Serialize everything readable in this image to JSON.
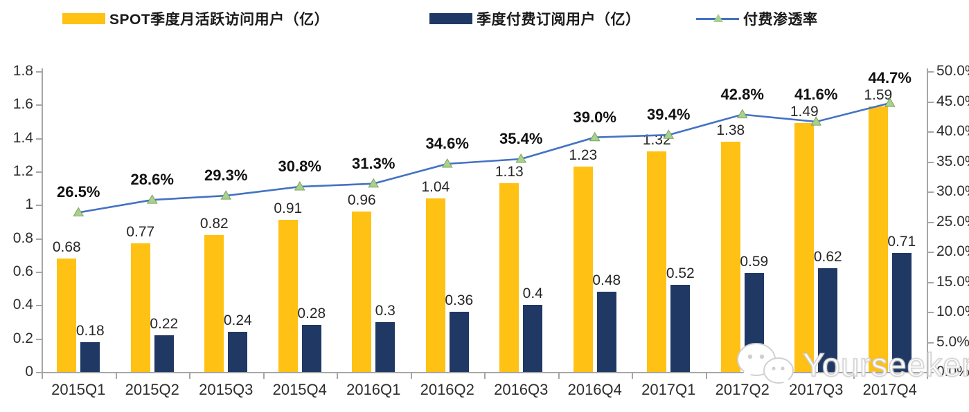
{
  "legend": {
    "items": [
      {
        "label": "SPOT季度月活跃访问用户（亿）",
        "swatch_color": "#FFC113",
        "marker": "bar"
      },
      {
        "label": "季度付费订阅用户（亿）",
        "swatch_color": "#1F3864",
        "marker": "bar"
      },
      {
        "label": "付费渗透率",
        "swatch_color": "#4472C4",
        "marker": "line-with-triangle"
      }
    ]
  },
  "watermark": {
    "text": "Yourseeker",
    "icon": "wechat-icon"
  },
  "colors": {
    "bar_mau": "#FFC113",
    "bar_subs": "#1F3864",
    "line": "#4472C4",
    "marker_fill": "#A9D08E",
    "marker_stroke": "#7BA55C",
    "axis": "#a6a6a6"
  },
  "chart_data": {
    "type": "bar",
    "subtype": "grouped-bars-with-line-overlay",
    "categories": [
      "2015Q1",
      "2015Q2",
      "2015Q3",
      "2015Q4",
      "2016Q1",
      "2016Q2",
      "2016Q3",
      "2016Q4",
      "2017Q1",
      "2017Q2",
      "2017Q3",
      "2017Q4"
    ],
    "series": [
      {
        "name": "SPOT季度月活跃访问用户（亿）",
        "type": "bar",
        "axis": "left",
        "values": [
          0.68,
          0.77,
          0.82,
          0.91,
          0.96,
          1.04,
          1.13,
          1.23,
          1.32,
          1.38,
          1.49,
          1.59
        ],
        "labels": [
          "0.68",
          "0.77",
          "0.82",
          "0.91",
          "0.96",
          "1.04",
          "1.13",
          "1.23",
          "1.32",
          "1.38",
          "1.49",
          "1.59"
        ]
      },
      {
        "name": "季度付费订阅用户（亿）",
        "type": "bar",
        "axis": "left",
        "values": [
          0.18,
          0.22,
          0.24,
          0.28,
          0.3,
          0.36,
          0.4,
          0.48,
          0.52,
          0.59,
          0.62,
          0.71
        ],
        "labels": [
          "0.18",
          "0.22",
          "0.24",
          "0.28",
          "0.3",
          "0.36",
          "0.4",
          "0.48",
          "0.52",
          "0.59",
          "0.62",
          "0.71"
        ]
      },
      {
        "name": "付费渗透率",
        "type": "line",
        "axis": "right",
        "values": [
          26.5,
          28.6,
          29.3,
          30.8,
          31.3,
          34.6,
          35.4,
          39.0,
          39.4,
          42.8,
          41.6,
          44.7
        ],
        "labels": [
          "26.5%",
          "28.6%",
          "29.3%",
          "30.8%",
          "31.3%",
          "34.6%",
          "35.4%",
          "39.0%",
          "39.4%",
          "42.8%",
          "41.6%",
          "44.7%"
        ]
      }
    ],
    "left_axis": {
      "min": 0,
      "max": 1.8,
      "ticks": [
        "1.8",
        "1.6",
        "1.4",
        "1.2",
        "1",
        "0.8",
        "0.6",
        "0.4",
        "0.2",
        "0"
      ]
    },
    "right_axis": {
      "min": 0,
      "max": 50,
      "ticks": [
        "50.0%",
        "45.0%",
        "40.0%",
        "35.0%",
        "30.0%",
        "25.0%",
        "20.0%",
        "15.0%",
        "10.0%",
        "5.0%",
        "0.0%"
      ]
    },
    "grid": false,
    "legend_position": "top"
  }
}
